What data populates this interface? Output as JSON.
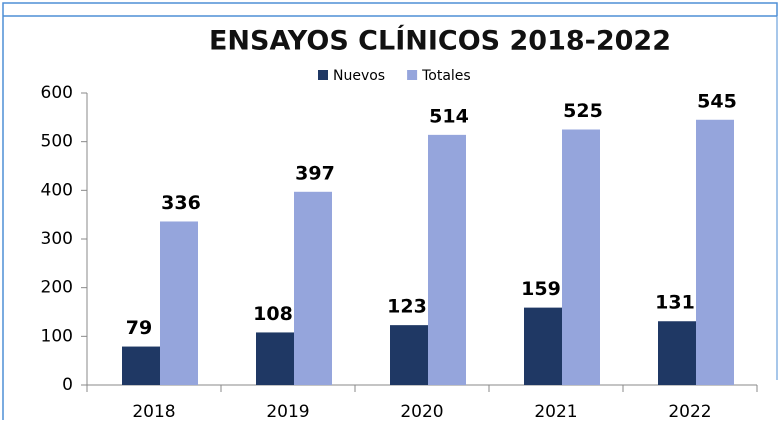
{
  "chart_data": {
    "type": "bar",
    "title": "ENSAYOS CLÍNICOS 2018-2022",
    "categories": [
      "2018",
      "2019",
      "2020",
      "2021",
      "2022"
    ],
    "series": [
      {
        "name": "Nuevos",
        "color": "#1f3864",
        "values": [
          79,
          108,
          123,
          159,
          131
        ]
      },
      {
        "name": "Totales",
        "color": "#95a5dc",
        "values": [
          336,
          397,
          514,
          525,
          545
        ]
      }
    ],
    "ylim": [
      0,
      600
    ],
    "yticks": [
      0,
      100,
      200,
      300,
      400,
      500,
      600
    ],
    "grid": false,
    "legend": "top"
  }
}
